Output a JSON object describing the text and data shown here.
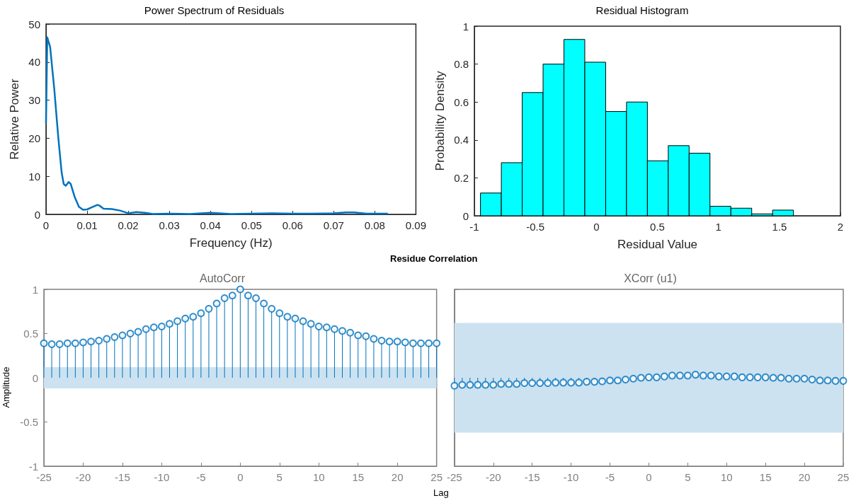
{
  "chart_data": [
    {
      "type": "line",
      "title": "Power Spectrum of Residuals",
      "xlabel": "Frequency (Hz)",
      "ylabel": "Relative Power",
      "xlim": [
        0,
        0.09
      ],
      "xticks": [
        0,
        0.01,
        0.02,
        0.03,
        0.04,
        0.05,
        0.06,
        0.07,
        0.08,
        0.09
      ],
      "ylim": [
        0,
        50
      ],
      "yticks": [
        0,
        10,
        20,
        30,
        40,
        50
      ],
      "grid": false,
      "marker": "none",
      "line_style": "solid",
      "series": [
        {
          "color": "#0072bd",
          "x": [
            0,
            0.0003,
            0.001,
            0.002,
            0.003,
            0.0038,
            0.0043,
            0.0048,
            0.0055,
            0.006,
            0.007,
            0.008,
            0.009,
            0.01,
            0.011,
            0.0125,
            0.013,
            0.014,
            0.016,
            0.018,
            0.02,
            0.022,
            0.024,
            0.026,
            0.03,
            0.035,
            0.04,
            0.045,
            0.05,
            0.055,
            0.06,
            0.065,
            0.07,
            0.073,
            0.075,
            0.078,
            0.083
          ],
          "values": [
            24,
            46.5,
            44,
            33,
            20,
            11,
            8,
            7.5,
            8.5,
            8,
            4.5,
            2,
            1.2,
            1.3,
            1.8,
            2.5,
            2.3,
            1.5,
            1.4,
            1,
            0.3,
            0.6,
            0.4,
            0.1,
            0.2,
            0.1,
            0.4,
            0.1,
            0.2,
            0.3,
            0.2,
            0.2,
            0.3,
            0.5,
            0.5,
            0.2,
            0.2
          ]
        }
      ]
    },
    {
      "type": "histogram",
      "title": "Residual Histogram",
      "xlabel": "Residual Value",
      "ylabel": "Probability Density",
      "xlim": [
        -1,
        2
      ],
      "xticks": [
        -1,
        -0.5,
        0,
        0.5,
        1,
        1.5,
        2
      ],
      "ylim": [
        0,
        1
      ],
      "yticks": [
        0,
        0.2,
        0.4,
        0.6,
        0.8,
        1
      ],
      "grid": false,
      "color": "#00ffff",
      "bins": [
        -0.95,
        -0.779,
        -0.608,
        -0.437,
        -0.266,
        -0.095,
        0.076,
        0.247,
        0.418,
        0.589,
        0.76,
        0.931,
        1.102,
        1.273,
        1.444,
        1.615
      ],
      "values": [
        0.12,
        0.28,
        0.65,
        0.8,
        0.93,
        0.81,
        0.55,
        0.6,
        0.29,
        0.37,
        0.33,
        0.05,
        0.04,
        0.01,
        0.03
      ]
    },
    {
      "type": "lollipop",
      "title": "AutoCorr",
      "ylabel": "Amplitude",
      "xlabel": "Lag",
      "annotations": [
        "Residue Correlation"
      ],
      "xlim": [
        -25,
        25
      ],
      "xticks": [
        -25,
        -20,
        -15,
        -10,
        -5,
        0,
        5,
        10,
        15,
        20,
        25
      ],
      "ylim": [
        -1,
        1
      ],
      "yticks": [
        -1,
        -0.5,
        0,
        0.5,
        1
      ],
      "grid": false,
      "marker": "circle",
      "bands": [
        {
          "axis": "y",
          "from": -0.12,
          "to": 0.12,
          "color": "#cce2f1"
        }
      ],
      "series": [
        {
          "color": "#0072bd",
          "x": [
            -25,
            -24,
            -23,
            -22,
            -21,
            -20,
            -19,
            -18,
            -17,
            -16,
            -15,
            -14,
            -13,
            -12,
            -11,
            -10,
            -9,
            -8,
            -7,
            -6,
            -5,
            -4,
            -3,
            -2,
            -1,
            0,
            1,
            2,
            3,
            4,
            5,
            6,
            7,
            8,
            9,
            10,
            11,
            12,
            13,
            14,
            15,
            16,
            17,
            18,
            19,
            20,
            21,
            22,
            23,
            24,
            25
          ],
          "values": [
            0.39,
            0.38,
            0.38,
            0.39,
            0.39,
            0.4,
            0.41,
            0.42,
            0.44,
            0.46,
            0.48,
            0.5,
            0.52,
            0.55,
            0.57,
            0.58,
            0.61,
            0.64,
            0.67,
            0.69,
            0.73,
            0.78,
            0.84,
            0.9,
            0.93,
            1,
            0.93,
            0.9,
            0.84,
            0.78,
            0.73,
            0.69,
            0.67,
            0.64,
            0.61,
            0.58,
            0.57,
            0.55,
            0.53,
            0.51,
            0.48,
            0.47,
            0.44,
            0.42,
            0.41,
            0.41,
            0.4,
            0.39,
            0.39,
            0.39,
            0.39
          ]
        }
      ]
    },
    {
      "type": "lollipop",
      "title": "XCorr (u1)",
      "tick_labels": "x",
      "xlim": [
        -25,
        25
      ],
      "xticks": [
        -25,
        -20,
        -15,
        -10,
        -5,
        0,
        5,
        10,
        15,
        20,
        25
      ],
      "ylim": [
        -1,
        1
      ],
      "yticks": [
        -1,
        -0.5,
        0,
        0.5,
        1
      ],
      "grid": false,
      "marker": "circle",
      "bands": [
        {
          "axis": "y",
          "from": -0.62,
          "to": 0.62,
          "color": "#cce2f1"
        }
      ],
      "series": [
        {
          "color": "#0072bd",
          "x": [
            -25,
            -24,
            -23,
            -22,
            -21,
            -20,
            -19,
            -18,
            -17,
            -16,
            -15,
            -14,
            -13,
            -12,
            -11,
            -10,
            -9,
            -8,
            -7,
            -6,
            -5,
            -4,
            -3,
            -2,
            -1,
            0,
            1,
            2,
            3,
            4,
            5,
            6,
            7,
            8,
            9,
            10,
            11,
            12,
            13,
            14,
            15,
            16,
            17,
            18,
            19,
            20,
            21,
            22,
            23,
            24,
            25
          ],
          "values": [
            -0.09,
            -0.08,
            -0.08,
            -0.08,
            -0.08,
            -0.08,
            -0.07,
            -0.07,
            -0.07,
            -0.06,
            -0.06,
            -0.06,
            -0.06,
            -0.055,
            -0.055,
            -0.055,
            -0.055,
            -0.045,
            -0.045,
            -0.04,
            -0.03,
            -0.03,
            -0.02,
            -0.01,
            0,
            0.005,
            0.005,
            0.015,
            0.025,
            0.025,
            0.025,
            0.035,
            0.025,
            0.025,
            0.015,
            0.015,
            0.015,
            0.005,
            0.005,
            0.005,
            0.005,
            0,
            0,
            -0.01,
            -0.01,
            -0.01,
            -0.02,
            -0.03,
            -0.03,
            -0.035,
            -0.035
          ]
        }
      ]
    }
  ]
}
